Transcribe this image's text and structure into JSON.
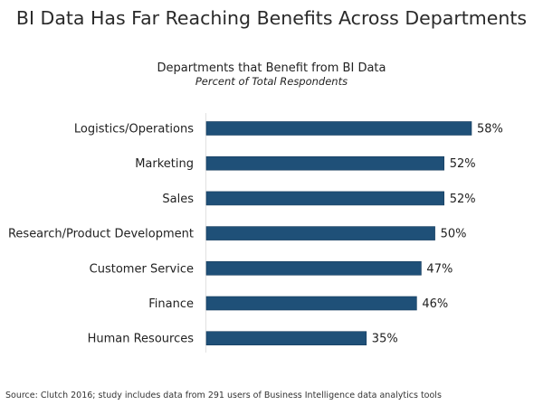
{
  "page_title": "BI Data Has Far Reaching Benefits Across Departments",
  "source": "Source: Clutch 2016; study includes data from 291 users of Business Intelligence data analytics tools",
  "chart_data": {
    "type": "bar",
    "orientation": "horizontal",
    "title": "Departments that Benefit from BI Data",
    "subtitle": "Percent of Total Respondents",
    "categories": [
      "Logistics/Operations",
      "Marketing",
      "Sales",
      "Research/Product Development",
      "Customer Service",
      "Finance",
      "Human Resources"
    ],
    "values": [
      58,
      52,
      52,
      50,
      47,
      46,
      35
    ],
    "labels": [
      "58%",
      "52%",
      "52%",
      "50%",
      "47%",
      "46%",
      "35%"
    ],
    "xlim": [
      0,
      58
    ],
    "grid": false,
    "bar_color": "#1f5078"
  }
}
